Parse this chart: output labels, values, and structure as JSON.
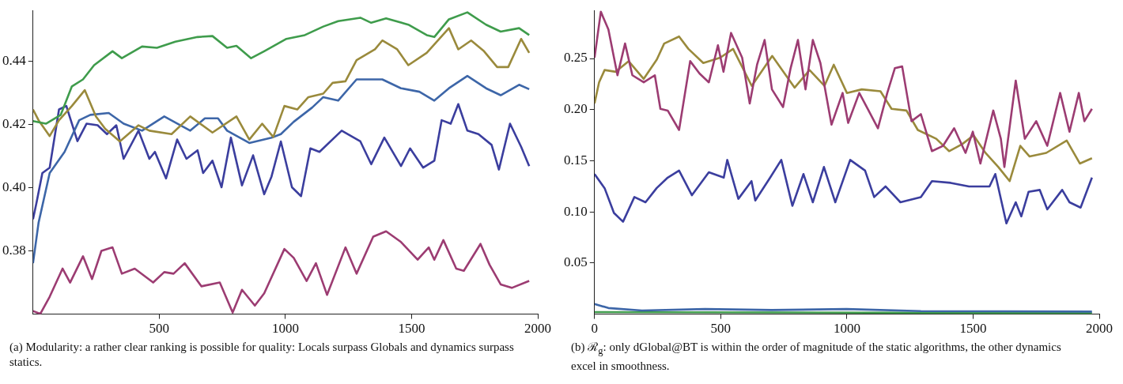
{
  "chart_data": [
    {
      "type": "line",
      "xlim": [
        0,
        2000
      ],
      "xticks": [
        500,
        1000,
        1500,
        2000
      ],
      "ylim": [
        0.36,
        0.456
      ],
      "yticks": [
        0.38,
        {
          "value": 0.4,
          "label": "0.40"
        },
        0.42,
        0.44
      ],
      "grid": false,
      "line_style": "solid",
      "marker": "none",
      "annotations": [
        "(a) Modularity: a rather clear ranking is possible for quality: Locals surpass Globals and dynamics surpass statics."
      ],
      "series": [
        {
          "color": "#3f9c4c",
          "x": [
            0,
            51,
            110,
            154,
            198,
            242,
            315,
            352,
            432,
            491,
            564,
            652,
            711,
            769,
            806,
            864,
            916,
            1004,
            1077,
            1150,
            1209,
            1297,
            1340,
            1399,
            1487,
            1560,
            1590,
            1648,
            1721,
            1795,
            1853,
            1926,
            1966
          ],
          "values": [
            0.421,
            0.4202,
            0.423,
            0.432,
            0.4342,
            0.4387,
            0.4431,
            0.4409,
            0.4446,
            0.4442,
            0.4461,
            0.4476,
            0.4479,
            0.4442,
            0.4448,
            0.4409,
            0.4431,
            0.447,
            0.4482,
            0.4509,
            0.4526,
            0.4537,
            0.4521,
            0.4535,
            0.4515,
            0.4482,
            0.4476,
            0.4532,
            0.4554,
            0.4515,
            0.4493,
            0.4504,
            0.4482
          ]
        },
        {
          "color": "#9a8a3c",
          "x": [
            0,
            22,
            66,
            103,
            154,
            205,
            249,
            286,
            344,
            418,
            461,
            549,
            623,
            711,
            806,
            857,
            908,
            952,
            996,
            1047,
            1091,
            1150,
            1187,
            1238,
            1282,
            1355,
            1384,
            1443,
            1487,
            1560,
            1648,
            1685,
            1736,
            1787,
            1839,
            1883,
            1934,
            1966
          ],
          "values": [
            0.4247,
            0.4213,
            0.4163,
            0.4213,
            0.4258,
            0.4308,
            0.4225,
            0.4186,
            0.4146,
            0.4197,
            0.418,
            0.4169,
            0.4225,
            0.4174,
            0.4225,
            0.4152,
            0.4202,
            0.416,
            0.4258,
            0.4247,
            0.4286,
            0.4297,
            0.4331,
            0.4336,
            0.4403,
            0.4437,
            0.4465,
            0.4437,
            0.4387,
            0.4426,
            0.4504,
            0.4437,
            0.4465,
            0.4431,
            0.4381,
            0.4381,
            0.447,
            0.4426
          ]
        },
        {
          "color": "#3d66a8",
          "x": [
            0,
            22,
            66,
            125,
            183,
            227,
            300,
            359,
            432,
            520,
            623,
            681,
            733,
            769,
            857,
            945,
            982,
            1033,
            1106,
            1150,
            1209,
            1282,
            1384,
            1458,
            1531,
            1590,
            1648,
            1721,
            1795,
            1853,
            1926,
            1966
          ],
          "values": [
            0.3761,
            0.3889,
            0.4046,
            0.4113,
            0.4213,
            0.423,
            0.4236,
            0.4202,
            0.418,
            0.4225,
            0.418,
            0.4219,
            0.4219,
            0.418,
            0.4141,
            0.4158,
            0.4169,
            0.4208,
            0.4253,
            0.4286,
            0.4275,
            0.4342,
            0.4342,
            0.4314,
            0.4303,
            0.4275,
            0.4314,
            0.4353,
            0.4314,
            0.4292,
            0.4325,
            0.4311
          ]
        },
        {
          "color": "#3b3e9e",
          "x": [
            0,
            15,
            37,
            66,
            103,
            132,
            176,
            212,
            256,
            293,
            330,
            359,
            418,
            461,
            483,
            527,
            571,
            608,
            652,
            674,
            711,
            747,
            784,
            828,
            872,
            916,
            945,
            982,
            1026,
            1062,
            1099,
            1135,
            1223,
            1297,
            1340,
            1392,
            1458,
            1494,
            1546,
            1590,
            1619,
            1655,
            1685,
            1721,
            1765,
            1817,
            1846,
            1890,
            1934,
            1966
          ],
          "values": [
            0.39,
            0.3957,
            0.4046,
            0.4063,
            0.4247,
            0.4258,
            0.4147,
            0.4202,
            0.4197,
            0.4169,
            0.4197,
            0.4091,
            0.418,
            0.4091,
            0.4113,
            0.4029,
            0.4152,
            0.4091,
            0.4118,
            0.4046,
            0.4085,
            0.4001,
            0.4158,
            0.4007,
            0.4102,
            0.3979,
            0.4035,
            0.4146,
            0.4001,
            0.3973,
            0.4124,
            0.4113,
            0.418,
            0.4146,
            0.4074,
            0.4158,
            0.4068,
            0.4124,
            0.4063,
            0.4085,
            0.4213,
            0.4202,
            0.4264,
            0.418,
            0.4169,
            0.4135,
            0.4057,
            0.4202,
            0.4129,
            0.4068
          ]
        },
        {
          "color": "#9c3c72",
          "x": [
            0,
            29,
            66,
            117,
            147,
            198,
            234,
            271,
            315,
            352,
            403,
            476,
            520,
            557,
            601,
            667,
            740,
            791,
            828,
            879,
            916,
            996,
            1033,
            1084,
            1121,
            1165,
            1238,
            1282,
            1348,
            1399,
            1458,
            1524,
            1568,
            1590,
            1626,
            1677,
            1707,
            1773,
            1809,
            1853,
            1897,
            1966
          ],
          "values": [
            0.361,
            0.3601,
            0.3655,
            0.3744,
            0.37,
            0.3783,
            0.3711,
            0.38,
            0.3811,
            0.3728,
            0.3744,
            0.37,
            0.3733,
            0.3728,
            0.3761,
            0.3688,
            0.37,
            0.3605,
            0.3677,
            0.3627,
            0.3666,
            0.3806,
            0.3778,
            0.3705,
            0.3761,
            0.3661,
            0.3811,
            0.3728,
            0.3845,
            0.3862,
            0.3828,
            0.3772,
            0.3811,
            0.3772,
            0.3834,
            0.3744,
            0.3737,
            0.3822,
            0.3756,
            0.3694,
            0.3683,
            0.3705
          ]
        }
      ]
    },
    {
      "type": "line",
      "xlim": [
        0,
        2000
      ],
      "xticks": [
        0,
        500,
        1000,
        1500,
        2000
      ],
      "ylim": [
        0,
        0.297
      ],
      "yticks": [
        0.05,
        {
          "value": 0.1,
          "label": "0.10"
        },
        0.15,
        {
          "value": 0.2,
          "label": "0.20"
        },
        0.25
      ],
      "grid": false,
      "line_style": "solid",
      "marker": "none",
      "annotations": [
        "(b) ℛ$_{g}$: only dGlobal@BT is within the order of magnitude of the static algorithms, the other dynamics excel in smoothness."
      ],
      "series": [
        {
          "color": "#9c3c72",
          "x": [
            0,
            25,
            55,
            91,
            121,
            150,
            195,
            239,
            261,
            290,
            335,
            379,
            416,
            453,
            489,
            511,
            541,
            585,
            615,
            644,
            674,
            703,
            747,
            777,
            806,
            836,
            865,
            895,
            939,
            983,
            1005,
            1049,
            1086,
            1123,
            1160,
            1190,
            1219,
            1256,
            1293,
            1337,
            1381,
            1425,
            1470,
            1499,
            1529,
            1580,
            1610,
            1624,
            1669,
            1705,
            1750,
            1794,
            1845,
            1882,
            1919,
            1941,
            1971
          ],
          "values": [
            0.2508,
            0.2957,
            0.2784,
            0.2336,
            0.2646,
            0.2336,
            0.2267,
            0.2336,
            0.2008,
            0.1991,
            0.1801,
            0.2474,
            0.2353,
            0.2267,
            0.2629,
            0.237,
            0.275,
            0.2508,
            0.206,
            0.2439,
            0.2681,
            0.2198,
            0.2025,
            0.2405,
            0.2681,
            0.2198,
            0.2681,
            0.2456,
            0.1853,
            0.2163,
            0.187,
            0.2163,
            0.1991,
            0.1818,
            0.2163,
            0.2405,
            0.2422,
            0.1887,
            0.1956,
            0.1594,
            0.1646,
            0.1818,
            0.1577,
            0.1784,
            0.1473,
            0.1991,
            0.1715,
            0.1439,
            0.2284,
            0.1715,
            0.1887,
            0.1646,
            0.2163,
            0.1784,
            0.2163,
            0.1887,
            0.2008
          ]
        },
        {
          "color": "#9a8a3c",
          "x": [
            0,
            18,
            40,
            84,
            135,
            195,
            247,
            276,
            335,
            372,
            431,
            498,
            549,
            623,
            704,
            793,
            852,
            911,
            948,
            1000,
            1059,
            1133,
            1177,
            1236,
            1281,
            1354,
            1405,
            1457,
            1502,
            1549,
            1600,
            1645,
            1687,
            1724,
            1790,
            1871,
            1923,
            1971
          ],
          "values": [
            0.206,
            0.2267,
            0.2387,
            0.237,
            0.2474,
            0.2301,
            0.2491,
            0.2646,
            0.2715,
            0.2594,
            0.2456,
            0.2508,
            0.2594,
            0.2232,
            0.2525,
            0.2215,
            0.2387,
            0.2232,
            0.2439,
            0.2163,
            0.2198,
            0.218,
            0.2008,
            0.1991,
            0.1801,
            0.1715,
            0.1594,
            0.1663,
            0.1749,
            0.1577,
            0.1439,
            0.1301,
            0.1646,
            0.1542,
            0.1577,
            0.1697,
            0.1473,
            0.1525
          ]
        },
        {
          "color": "#3b3e9e",
          "x": [
            0,
            40,
            77,
            113,
            158,
            202,
            246,
            290,
            335,
            386,
            453,
            512,
            526,
            570,
            622,
            637,
            696,
            740,
            784,
            828,
            865,
            909,
            954,
            1013,
            1072,
            1108,
            1153,
            1212,
            1293,
            1337,
            1411,
            1484,
            1565,
            1588,
            1632,
            1669,
            1691,
            1720,
            1764,
            1794,
            1853,
            1882,
            1926,
            1971
          ],
          "values": [
            0.137,
            0.1232,
            0.099,
            0.0904,
            0.1145,
            0.1094,
            0.1232,
            0.1335,
            0.1404,
            0.1163,
            0.1387,
            0.1335,
            0.1508,
            0.1128,
            0.1301,
            0.1111,
            0.1335,
            0.1508,
            0.1059,
            0.137,
            0.1094,
            0.1439,
            0.1094,
            0.1508,
            0.1404,
            0.1145,
            0.1249,
            0.1094,
            0.1145,
            0.1301,
            0.1284,
            0.1249,
            0.1249,
            0.137,
            0.0887,
            0.1094,
            0.0956,
            0.1197,
            0.1215,
            0.1025,
            0.1215,
            0.1094,
            0.1042,
            0.1335
          ]
        },
        {
          "color": "#3d66a8",
          "x": [
            0,
            55,
            188,
            438,
            703,
            998,
            1293,
            1971
          ],
          "values": [
            0.01,
            0.006,
            0.0035,
            0.005,
            0.004,
            0.005,
            0.003,
            0.0025
          ]
        },
        {
          "color": "#3f9c4c",
          "x": [
            0,
            1971
          ],
          "values": [
            0.002,
            0.001
          ]
        }
      ]
    }
  ]
}
